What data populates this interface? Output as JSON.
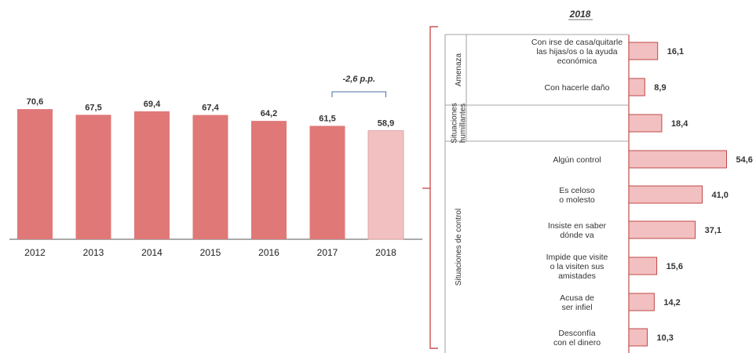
{
  "colors": {
    "bar": "#e07878",
    "bar_highlight": "#f2c0c0",
    "bar_stroke": "#c24848",
    "bracket": "#d05050",
    "diff_bracket": "#4a6fa5",
    "axis": "#555555",
    "separator": "#888888"
  },
  "chart_data": [
    {
      "type": "bar",
      "categories": [
        "2012",
        "2013",
        "2014",
        "2015",
        "2016",
        "2017",
        "2018"
      ],
      "values": [
        70.6,
        67.5,
        69.4,
        67.4,
        64.2,
        61.5,
        58.9
      ],
      "value_labels": [
        "70,6",
        "67,5",
        "69,4",
        "67,4",
        "64,2",
        "61,5",
        "58,9"
      ],
      "highlight_category": "2018",
      "annotation": "-2,6 p.p.",
      "ylim": [
        0,
        80
      ]
    },
    {
      "type": "bar",
      "orientation": "horizontal",
      "title": "2018",
      "groups": [
        {
          "name": "Amenaza",
          "items": [
            {
              "label": [
                "Con irse de casa/quitarle",
                "las hijas/os o la ayuda",
                "económica"
              ],
              "value": 16.1,
              "value_label": "16,1"
            },
            {
              "label": [
                "Con hacerle daño"
              ],
              "value": 8.9,
              "value_label": "8,9"
            }
          ]
        },
        {
          "name": [
            "Situaciones",
            "humillantes"
          ],
          "items": [
            {
              "label": [],
              "value": 18.4,
              "value_label": "18,4"
            }
          ]
        },
        {
          "name": "Situaciones de control",
          "items": [
            {
              "label": [
                "Algún control"
              ],
              "value": 54.6,
              "value_label": "54,6"
            },
            {
              "label": [
                "Es celoso",
                "o molesto"
              ],
              "value": 41.0,
              "value_label": "41,0"
            },
            {
              "label": [
                "Insiste en saber",
                "dónde va"
              ],
              "value": 37.1,
              "value_label": "37,1"
            },
            {
              "label": [
                "Impide que visite",
                "o la visiten sus",
                "amistades"
              ],
              "value": 15.6,
              "value_label": "15,6"
            },
            {
              "label": [
                "Acusa de",
                "ser infiel"
              ],
              "value": 14.2,
              "value_label": "14,2"
            },
            {
              "label": [
                "Desconfía",
                "con el dinero"
              ],
              "value": 10.3,
              "value_label": "10,3"
            }
          ]
        }
      ]
    }
  ]
}
